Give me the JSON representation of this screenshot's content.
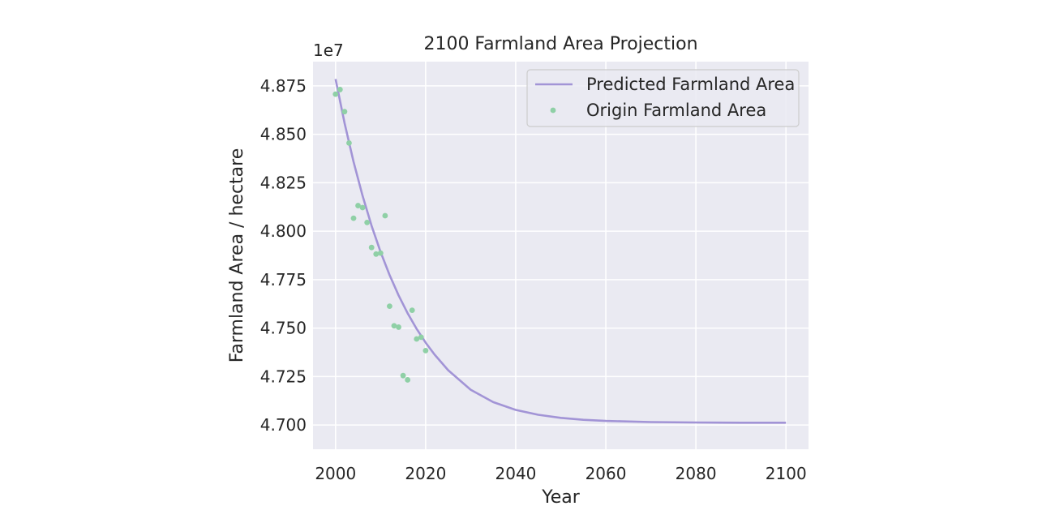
{
  "chart_data": {
    "type": "line",
    "title": "2100 Farmland Area Projection",
    "xlabel": "Year",
    "ylabel": "Farmland Area / hectare",
    "y_offset_label": "1e7",
    "y_scale": 10000000,
    "xlim": [
      1995,
      2105
    ],
    "ylim": [
      4.6875,
      4.8875
    ],
    "x_ticks": [
      2000,
      2020,
      2040,
      2060,
      2080,
      2100
    ],
    "x_tick_labels": [
      "2000",
      "2020",
      "2040",
      "2060",
      "2080",
      "2100"
    ],
    "y_ticks": [
      4.7,
      4.725,
      4.75,
      4.775,
      4.8,
      4.825,
      4.85,
      4.875
    ],
    "y_tick_labels": [
      "4.700",
      "4.725",
      "4.750",
      "4.775",
      "4.800",
      "4.825",
      "4.850",
      "4.875"
    ],
    "grid": true,
    "legend_position": "top-right",
    "series": [
      {
        "name": "Predicted Farmland Area",
        "kind": "line",
        "color": "#a294d6",
        "x": [
          2000,
          2002,
          2004,
          2006,
          2008,
          2010,
          2012,
          2014,
          2016,
          2018,
          2020,
          2022,
          2025,
          2030,
          2035,
          2040,
          2045,
          2050,
          2055,
          2060,
          2070,
          2080,
          2090,
          2100
        ],
        "values": [
          4.8785,
          4.8558,
          4.8358,
          4.8183,
          4.8028,
          4.7893,
          4.7774,
          4.7669,
          4.7577,
          4.7496,
          4.7425,
          4.7363,
          4.7283,
          4.7182,
          4.7118,
          4.7078,
          4.7053,
          4.7037,
          4.7027,
          4.7021,
          4.7015,
          4.7013,
          4.7012,
          4.7012
        ]
      },
      {
        "name": "Origin Farmland Area",
        "kind": "scatter",
        "color": "#8fd0a6",
        "x": [
          2000,
          2001,
          2002,
          2003,
          2004,
          2005,
          2006,
          2007,
          2008,
          2009,
          2010,
          2011,
          2012,
          2013,
          2014,
          2015,
          2016,
          2017,
          2018,
          2019,
          2020
        ],
        "values": [
          4.8707,
          4.8731,
          4.8617,
          4.8455,
          4.8067,
          4.8132,
          4.8122,
          4.8045,
          4.7916,
          4.7882,
          4.7887,
          4.808,
          4.7613,
          4.7512,
          4.7505,
          4.7255,
          4.7233,
          4.7592,
          4.7444,
          4.7453,
          4.7384
        ]
      }
    ]
  }
}
